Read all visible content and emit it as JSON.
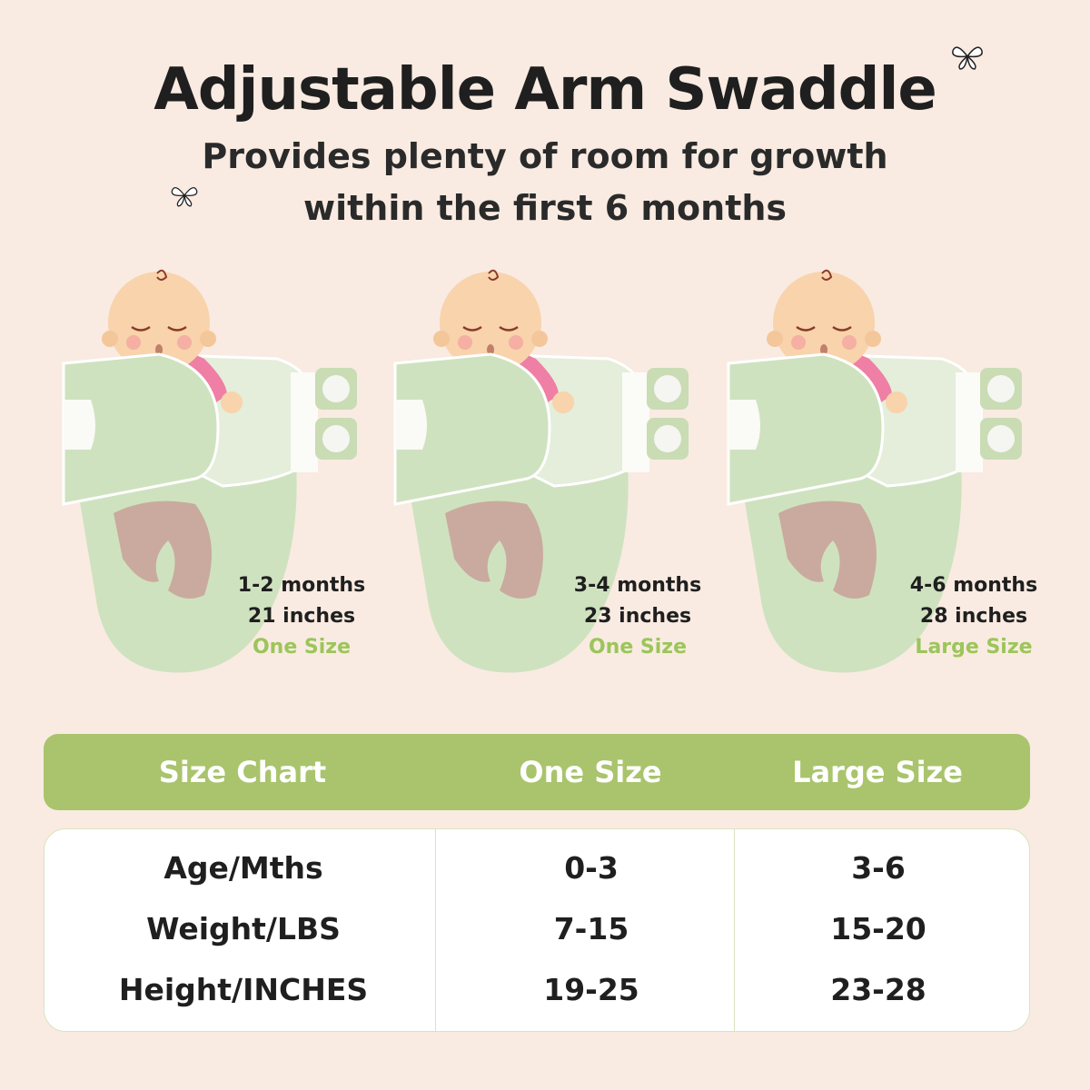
{
  "title": "Adjustable Arm Swaddle",
  "subtitle": [
    "Provides plenty of room for growth",
    "within the first 6 months"
  ],
  "colors": {
    "background": "#f9ebe2",
    "accent_green": "#a9c46c",
    "size_text_green": "#9cc55a",
    "text": "#1f1f1f"
  },
  "icons": [
    "butterfly-icon",
    "butterfly-icon"
  ],
  "stages": [
    {
      "age": "1-2 months",
      "length": "21 inches",
      "size": "One Size"
    },
    {
      "age": "3-4 months",
      "length": "23 inches",
      "size": "One Size"
    },
    {
      "age": "4-6 months",
      "length": "28 inches",
      "size": "Large Size"
    }
  ],
  "table": {
    "headers": [
      "Size Chart",
      "One Size",
      "Large Size"
    ],
    "rows": [
      {
        "label": "Age/Mths",
        "one": "0-3",
        "large": "3-6"
      },
      {
        "label": "Weight/LBS",
        "one": "7-15",
        "large": "15-20"
      },
      {
        "label": "Height/INCHES",
        "one": "19-25",
        "large": "23-28"
      }
    ]
  }
}
